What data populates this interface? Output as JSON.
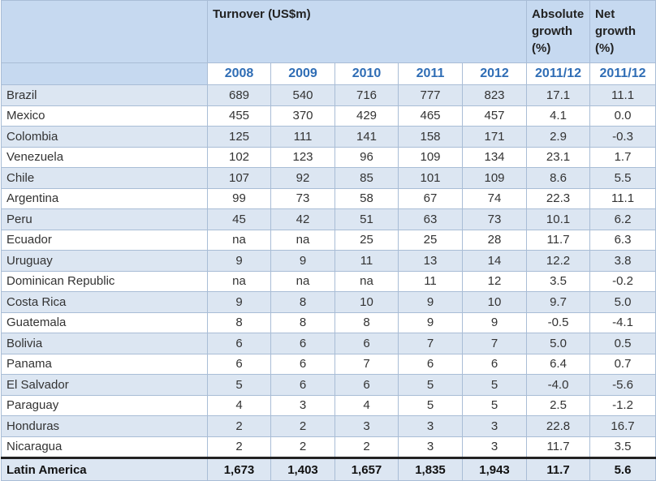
{
  "header": {
    "turnover": "Turnover (US$m)",
    "absolute": [
      "Absolute",
      "growth",
      "(%)"
    ],
    "net": [
      "Net",
      "growth",
      "(%)"
    ]
  },
  "table": {
    "columns": [
      "2008",
      "2009",
      "2010",
      "2011",
      "2012",
      "2011/12",
      "2011/12"
    ],
    "rows": [
      [
        "Brazil",
        "689",
        "540",
        "716",
        "777",
        "823",
        "17.1",
        "11.1"
      ],
      [
        "Mexico",
        "455",
        "370",
        "429",
        "465",
        "457",
        "4.1",
        "0.0"
      ],
      [
        "Colombia",
        "125",
        "111",
        "141",
        "158",
        "171",
        "2.9",
        "-0.3"
      ],
      [
        "Venezuela",
        "102",
        "123",
        "96",
        "109",
        "134",
        "23.1",
        "1.7"
      ],
      [
        "Chile",
        "107",
        "92",
        "85",
        "101",
        "109",
        "8.6",
        "5.5"
      ],
      [
        "Argentina",
        "99",
        "73",
        "58",
        "67",
        "74",
        "22.3",
        "11.1"
      ],
      [
        "Peru",
        "45",
        "42",
        "51",
        "63",
        "73",
        "10.1",
        "6.2"
      ],
      [
        "Ecuador",
        "na",
        "na",
        "25",
        "25",
        "28",
        "11.7",
        "6.3"
      ],
      [
        "Uruguay",
        "9",
        "9",
        "11",
        "13",
        "14",
        "12.2",
        "3.8"
      ],
      [
        "Dominican Republic",
        "na",
        "na",
        "na",
        "11",
        "12",
        "3.5",
        "-0.2"
      ],
      [
        "Costa Rica",
        "9",
        "8",
        "10",
        "9",
        "10",
        "9.7",
        "5.0"
      ],
      [
        "Guatemala",
        "8",
        "8",
        "8",
        "9",
        "9",
        "-0.5",
        "-4.1"
      ],
      [
        "Bolivia",
        "6",
        "6",
        "6",
        "7",
        "7",
        "5.0",
        "0.5"
      ],
      [
        "Panama",
        "6",
        "6",
        "7",
        "6",
        "6",
        "6.4",
        "0.7"
      ],
      [
        "El Salvador",
        "5",
        "6",
        "6",
        "5",
        "5",
        "-4.0",
        "-5.6"
      ],
      [
        "Paraguay",
        "4",
        "3",
        "4",
        "5",
        "5",
        "2.5",
        "-1.2"
      ],
      [
        "Honduras",
        "2",
        "2",
        "3",
        "3",
        "3",
        "22.8",
        "16.7"
      ],
      [
        "Nicaragua",
        "2",
        "2",
        "2",
        "3",
        "3",
        "11.7",
        "3.5"
      ]
    ],
    "total": [
      "Latin America",
      "1,673",
      "1,403",
      "1,657",
      "1,835",
      "1,943",
      "11.7",
      "5.6"
    ]
  }
}
